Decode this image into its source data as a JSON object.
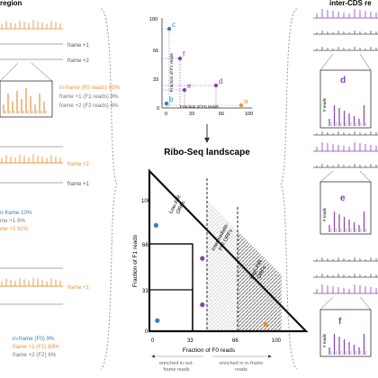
{
  "header": {
    "left_title": "region",
    "right_title": "inter-CDS re"
  },
  "left_panel": {
    "block1": {
      "frame_plus1": "frame +1",
      "frame_plus2": "frame +2",
      "legend": [
        "in-frame (F0 reads) 85%",
        "frame +1 (F1 reads) 9%",
        "frame +2 (F2 reads) 6%"
      ]
    },
    "block2": {
      "frame_plus2": "frame +2",
      "frame_plus1": "frame +1",
      "legend": [
        "n-frame 10%",
        "me +1 8%",
        "me +2 82%"
      ]
    },
    "block3": {
      "frame_plus1": "frame +1",
      "legend": [
        "in-frame (F0) 9%",
        "frame +1 (F1) 83%",
        "frame +2 (F2) 6%"
      ]
    }
  },
  "top_scatter": {
    "ylabel": "Fraction of F1 reads",
    "xlabel": "Fraction of F0 reads",
    "yticks": [
      "100",
      "66",
      "33",
      "0"
    ],
    "xticks": [
      "0",
      "33",
      "66",
      "100"
    ],
    "points": [
      {
        "label": "a",
        "x": 88,
        "y": 3,
        "color": "#e8923a"
      },
      {
        "label": "b",
        "x": 5,
        "y": 5,
        "color": "#3a7ec2"
      },
      {
        "label": "c",
        "x": 8,
        "y": 88,
        "color": "#3a7ec2"
      },
      {
        "label": "d",
        "x": 60,
        "y": 25,
        "color": "#8a3fb5"
      },
      {
        "label": "e",
        "x": 25,
        "y": 20,
        "color": "#8a3fb5"
      },
      {
        "label": "f",
        "x": 20,
        "y": 55,
        "color": "#8a3fb5"
      }
    ]
  },
  "landscape": {
    "title": "Ribo-Seq landscape",
    "ylabel": "Fraction of F1 reads",
    "xlabel": "Fraction of F0 reads",
    "yticks": [
      "100",
      "66",
      "33",
      "0"
    ],
    "xticks": [
      "0",
      "33",
      "66",
      "100"
    ],
    "region_low": [
      "Low-FIR",
      "ORFs"
    ],
    "region_mid": [
      "Intermediate-",
      "FIR ORFs"
    ],
    "region_high": [
      "High-FIR",
      "ORFs"
    ],
    "enriched_out": [
      "enriched in out-",
      "frame reads"
    ],
    "enriched_in": [
      "enriched in in-frame",
      "reads"
    ],
    "points": [
      {
        "x": 5,
        "y": 80,
        "color": "#3a7ec2"
      },
      {
        "x": 40,
        "y": 55,
        "color": "#8a3fb5"
      },
      {
        "x": 40,
        "y": 20,
        "color": "#8a3fb5"
      },
      {
        "x": 6,
        "y": 8,
        "color": "#3a7ec2"
      },
      {
        "x": 88,
        "y": 5,
        "color": "#e8923a"
      }
    ]
  },
  "right_panel": {
    "labels": [
      "d",
      "e",
      "f"
    ],
    "axis_label": "# reads"
  },
  "colors": {
    "orange": "#e8923a",
    "blue": "#3a7ec2",
    "purple": "#8a3fb5",
    "grey": "#888888"
  }
}
